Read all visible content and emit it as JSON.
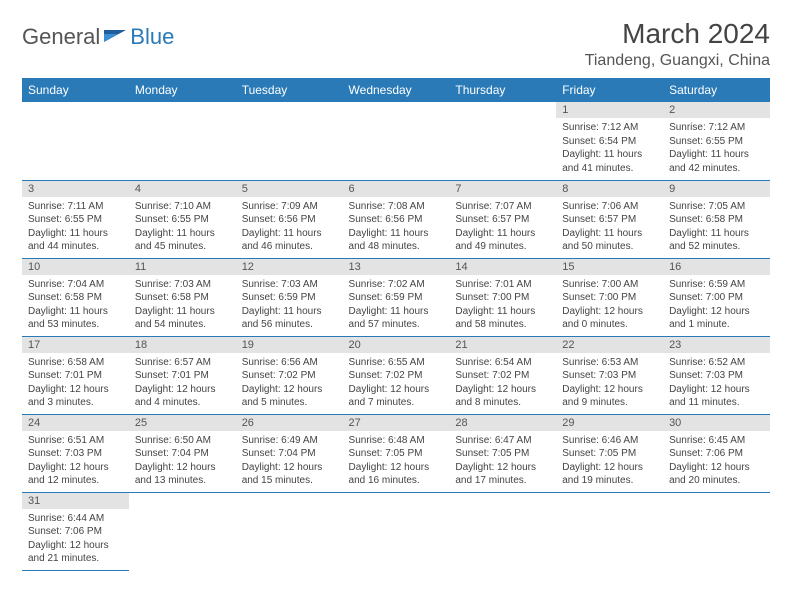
{
  "logo": {
    "part1": "General",
    "part2": "Blue"
  },
  "title": "March 2024",
  "location": "Tiandeng, Guangxi, China",
  "colors": {
    "header_bg": "#2a7ab8",
    "header_fg": "#ffffff",
    "daynum_bg": "#e3e3e3",
    "rule": "#2a7ab8",
    "text": "#444444"
  },
  "weekdays": [
    "Sunday",
    "Monday",
    "Tuesday",
    "Wednesday",
    "Thursday",
    "Friday",
    "Saturday"
  ],
  "weeks": [
    [
      null,
      null,
      null,
      null,
      null,
      {
        "n": "1",
        "sr": "Sunrise: 7:12 AM",
        "ss": "Sunset: 6:54 PM",
        "d1": "Daylight: 11 hours",
        "d2": "and 41 minutes."
      },
      {
        "n": "2",
        "sr": "Sunrise: 7:12 AM",
        "ss": "Sunset: 6:55 PM",
        "d1": "Daylight: 11 hours",
        "d2": "and 42 minutes."
      }
    ],
    [
      {
        "n": "3",
        "sr": "Sunrise: 7:11 AM",
        "ss": "Sunset: 6:55 PM",
        "d1": "Daylight: 11 hours",
        "d2": "and 44 minutes."
      },
      {
        "n": "4",
        "sr": "Sunrise: 7:10 AM",
        "ss": "Sunset: 6:55 PM",
        "d1": "Daylight: 11 hours",
        "d2": "and 45 minutes."
      },
      {
        "n": "5",
        "sr": "Sunrise: 7:09 AM",
        "ss": "Sunset: 6:56 PM",
        "d1": "Daylight: 11 hours",
        "d2": "and 46 minutes."
      },
      {
        "n": "6",
        "sr": "Sunrise: 7:08 AM",
        "ss": "Sunset: 6:56 PM",
        "d1": "Daylight: 11 hours",
        "d2": "and 48 minutes."
      },
      {
        "n": "7",
        "sr": "Sunrise: 7:07 AM",
        "ss": "Sunset: 6:57 PM",
        "d1": "Daylight: 11 hours",
        "d2": "and 49 minutes."
      },
      {
        "n": "8",
        "sr": "Sunrise: 7:06 AM",
        "ss": "Sunset: 6:57 PM",
        "d1": "Daylight: 11 hours",
        "d2": "and 50 minutes."
      },
      {
        "n": "9",
        "sr": "Sunrise: 7:05 AM",
        "ss": "Sunset: 6:58 PM",
        "d1": "Daylight: 11 hours",
        "d2": "and 52 minutes."
      }
    ],
    [
      {
        "n": "10",
        "sr": "Sunrise: 7:04 AM",
        "ss": "Sunset: 6:58 PM",
        "d1": "Daylight: 11 hours",
        "d2": "and 53 minutes."
      },
      {
        "n": "11",
        "sr": "Sunrise: 7:03 AM",
        "ss": "Sunset: 6:58 PM",
        "d1": "Daylight: 11 hours",
        "d2": "and 54 minutes."
      },
      {
        "n": "12",
        "sr": "Sunrise: 7:03 AM",
        "ss": "Sunset: 6:59 PM",
        "d1": "Daylight: 11 hours",
        "d2": "and 56 minutes."
      },
      {
        "n": "13",
        "sr": "Sunrise: 7:02 AM",
        "ss": "Sunset: 6:59 PM",
        "d1": "Daylight: 11 hours",
        "d2": "and 57 minutes."
      },
      {
        "n": "14",
        "sr": "Sunrise: 7:01 AM",
        "ss": "Sunset: 7:00 PM",
        "d1": "Daylight: 11 hours",
        "d2": "and 58 minutes."
      },
      {
        "n": "15",
        "sr": "Sunrise: 7:00 AM",
        "ss": "Sunset: 7:00 PM",
        "d1": "Daylight: 12 hours",
        "d2": "and 0 minutes."
      },
      {
        "n": "16",
        "sr": "Sunrise: 6:59 AM",
        "ss": "Sunset: 7:00 PM",
        "d1": "Daylight: 12 hours",
        "d2": "and 1 minute."
      }
    ],
    [
      {
        "n": "17",
        "sr": "Sunrise: 6:58 AM",
        "ss": "Sunset: 7:01 PM",
        "d1": "Daylight: 12 hours",
        "d2": "and 3 minutes."
      },
      {
        "n": "18",
        "sr": "Sunrise: 6:57 AM",
        "ss": "Sunset: 7:01 PM",
        "d1": "Daylight: 12 hours",
        "d2": "and 4 minutes."
      },
      {
        "n": "19",
        "sr": "Sunrise: 6:56 AM",
        "ss": "Sunset: 7:02 PM",
        "d1": "Daylight: 12 hours",
        "d2": "and 5 minutes."
      },
      {
        "n": "20",
        "sr": "Sunrise: 6:55 AM",
        "ss": "Sunset: 7:02 PM",
        "d1": "Daylight: 12 hours",
        "d2": "and 7 minutes."
      },
      {
        "n": "21",
        "sr": "Sunrise: 6:54 AM",
        "ss": "Sunset: 7:02 PM",
        "d1": "Daylight: 12 hours",
        "d2": "and 8 minutes."
      },
      {
        "n": "22",
        "sr": "Sunrise: 6:53 AM",
        "ss": "Sunset: 7:03 PM",
        "d1": "Daylight: 12 hours",
        "d2": "and 9 minutes."
      },
      {
        "n": "23",
        "sr": "Sunrise: 6:52 AM",
        "ss": "Sunset: 7:03 PM",
        "d1": "Daylight: 12 hours",
        "d2": "and 11 minutes."
      }
    ],
    [
      {
        "n": "24",
        "sr": "Sunrise: 6:51 AM",
        "ss": "Sunset: 7:03 PM",
        "d1": "Daylight: 12 hours",
        "d2": "and 12 minutes."
      },
      {
        "n": "25",
        "sr": "Sunrise: 6:50 AM",
        "ss": "Sunset: 7:04 PM",
        "d1": "Daylight: 12 hours",
        "d2": "and 13 minutes."
      },
      {
        "n": "26",
        "sr": "Sunrise: 6:49 AM",
        "ss": "Sunset: 7:04 PM",
        "d1": "Daylight: 12 hours",
        "d2": "and 15 minutes."
      },
      {
        "n": "27",
        "sr": "Sunrise: 6:48 AM",
        "ss": "Sunset: 7:05 PM",
        "d1": "Daylight: 12 hours",
        "d2": "and 16 minutes."
      },
      {
        "n": "28",
        "sr": "Sunrise: 6:47 AM",
        "ss": "Sunset: 7:05 PM",
        "d1": "Daylight: 12 hours",
        "d2": "and 17 minutes."
      },
      {
        "n": "29",
        "sr": "Sunrise: 6:46 AM",
        "ss": "Sunset: 7:05 PM",
        "d1": "Daylight: 12 hours",
        "d2": "and 19 minutes."
      },
      {
        "n": "30",
        "sr": "Sunrise: 6:45 AM",
        "ss": "Sunset: 7:06 PM",
        "d1": "Daylight: 12 hours",
        "d2": "and 20 minutes."
      }
    ],
    [
      {
        "n": "31",
        "sr": "Sunrise: 6:44 AM",
        "ss": "Sunset: 7:06 PM",
        "d1": "Daylight: 12 hours",
        "d2": "and 21 minutes."
      },
      null,
      null,
      null,
      null,
      null,
      null
    ]
  ]
}
